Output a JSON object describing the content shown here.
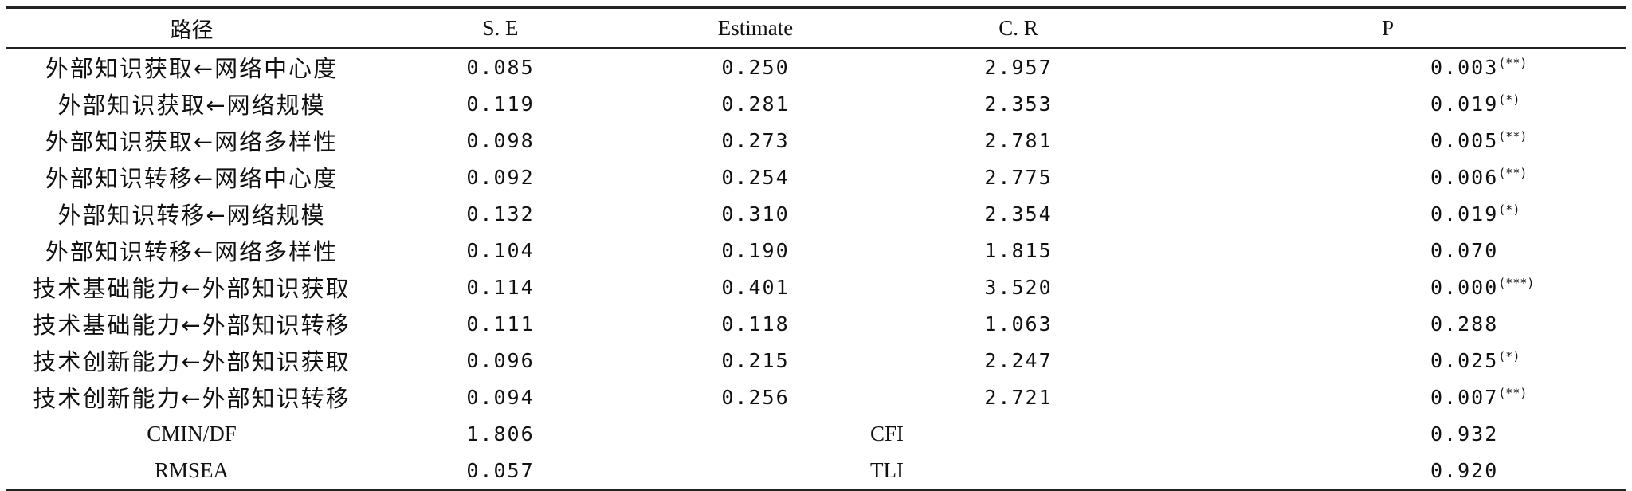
{
  "table": {
    "headers": [
      "路径",
      "S. E",
      "Estimate",
      "C. R",
      "P"
    ],
    "rows": [
      {
        "path": "外部知识获取←网络中心度",
        "se": "0.085",
        "estimate": "0.250",
        "cr": "2.957",
        "p": "0.003",
        "sig": "(**)"
      },
      {
        "path": "外部知识获取←网络规模",
        "se": "0.119",
        "estimate": "0.281",
        "cr": "2.353",
        "p": "0.019",
        "sig": "(*)"
      },
      {
        "path": "外部知识获取←网络多样性",
        "se": "0.098",
        "estimate": "0.273",
        "cr": "2.781",
        "p": "0.005",
        "sig": "(**)"
      },
      {
        "path": "外部知识转移←网络中心度",
        "se": "0.092",
        "estimate": "0.254",
        "cr": "2.775",
        "p": "0.006",
        "sig": "(**)"
      },
      {
        "path": "外部知识转移←网络规模",
        "se": "0.132",
        "estimate": "0.310",
        "cr": "2.354",
        "p": "0.019",
        "sig": "(*)"
      },
      {
        "path": "外部知识转移←网络多样性",
        "se": "0.104",
        "estimate": "0.190",
        "cr": "1.815",
        "p": "0.070",
        "sig": ""
      },
      {
        "path": "技术基础能力←外部知识获取",
        "se": "0.114",
        "estimate": "0.401",
        "cr": "3.520",
        "p": "0.000",
        "sig": "(***)"
      },
      {
        "path": "技术基础能力←外部知识转移",
        "se": "0.111",
        "estimate": "0.118",
        "cr": "1.063",
        "p": "0.288",
        "sig": ""
      },
      {
        "path": "技术创新能力←外部知识获取",
        "se": "0.096",
        "estimate": "0.215",
        "cr": "2.247",
        "p": "0.025",
        "sig": "(*)"
      },
      {
        "path": "技术创新能力←外部知识转移",
        "se": "0.094",
        "estimate": "0.256",
        "cr": "2.721",
        "p": "0.007",
        "sig": "(**)"
      }
    ],
    "fit_rows": [
      {
        "label1": "CMIN/DF",
        "value1": "1.806",
        "label2": "CFI",
        "value2": "0.932"
      },
      {
        "label1": "RMSEA",
        "value1": "0.057",
        "label2": "TLI",
        "value2": "0.920"
      }
    ]
  }
}
